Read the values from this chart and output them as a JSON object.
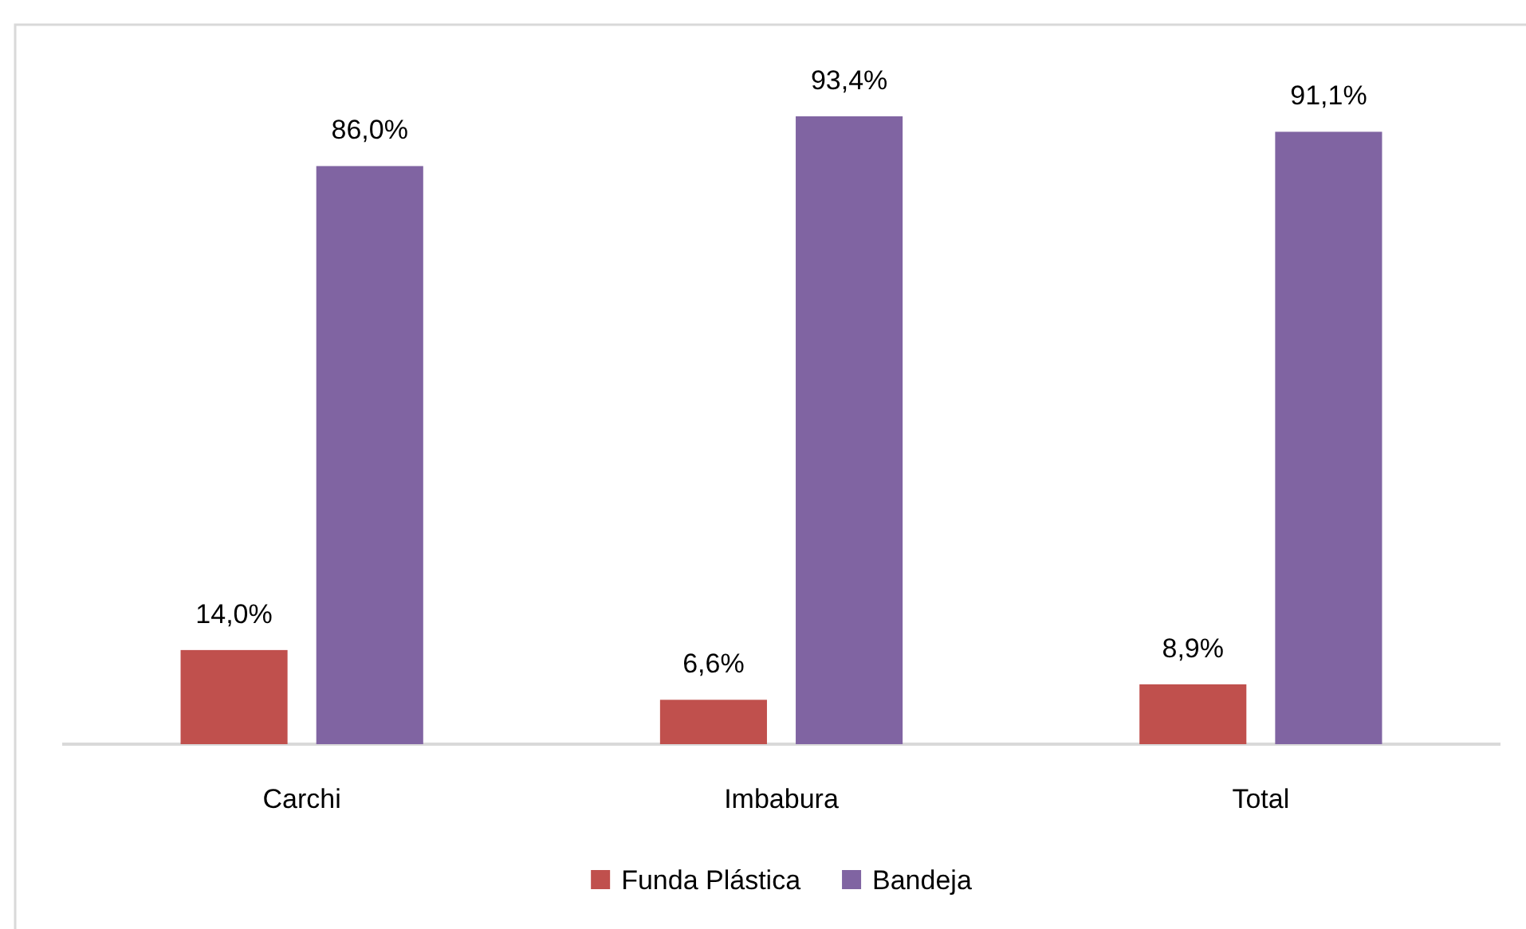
{
  "chart_data": {
    "type": "bar",
    "categories": [
      "Carchi",
      "Imbabura",
      "Total"
    ],
    "series": [
      {
        "name": "Funda Plástica",
        "color": "#c0504d",
        "values": [
          14.0,
          6.6,
          8.9
        ],
        "value_labels": [
          "14,0%",
          "6,6%",
          "8,9%"
        ]
      },
      {
        "name": "Bandeja",
        "color": "#8064a2",
        "values": [
          86.0,
          93.4,
          91.1
        ],
        "value_labels": [
          "86,0%",
          "93,4%",
          "91,1%"
        ]
      }
    ],
    "legend": "bottom"
  }
}
